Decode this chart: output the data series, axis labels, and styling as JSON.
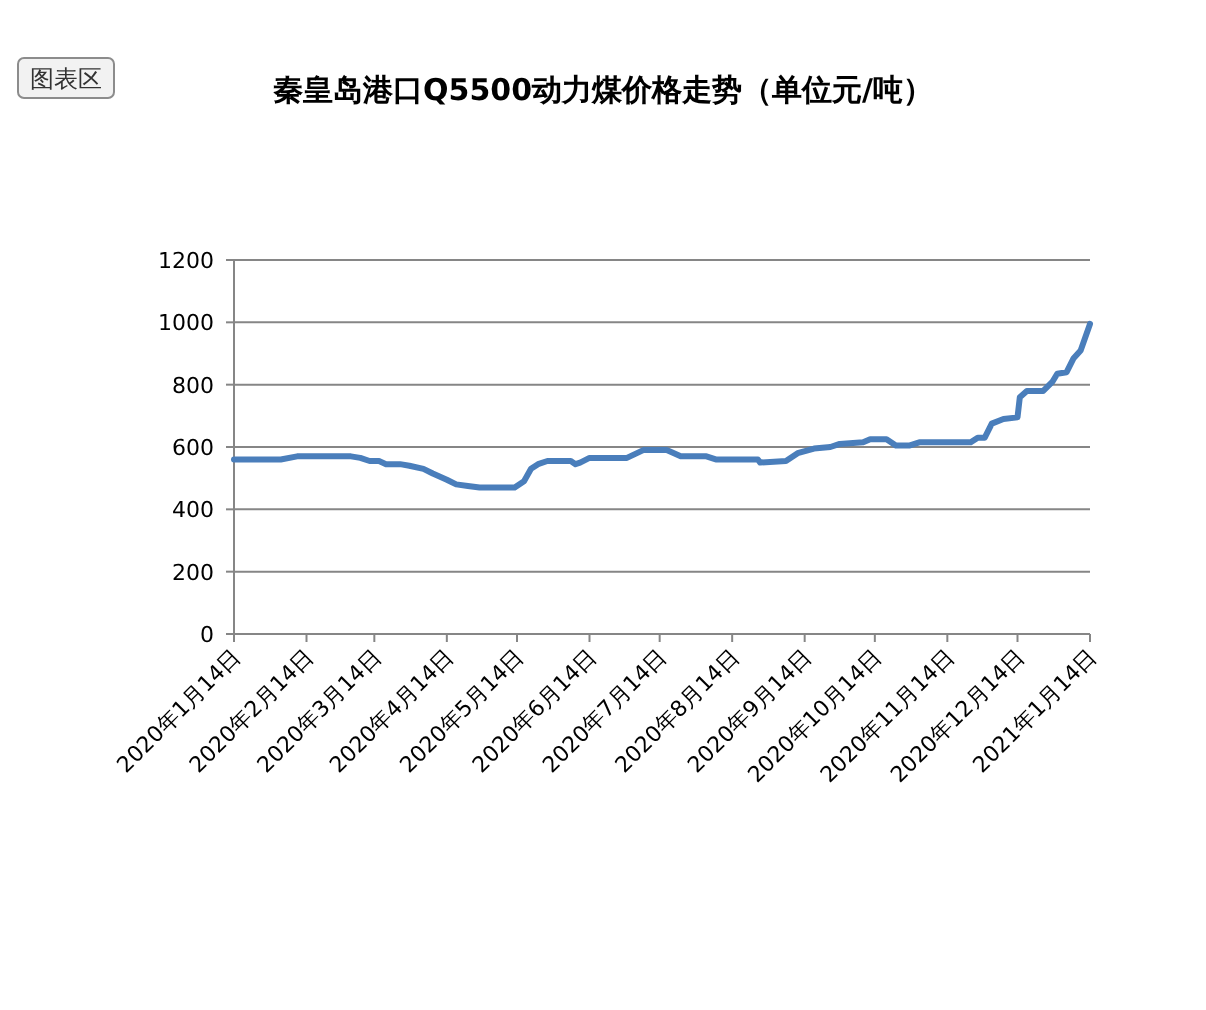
{
  "chart_data": {
    "type": "line",
    "title": "秦皇岛港口Q5500动力煤价格走势（单位元/吨）",
    "annotations": [
      "图表区"
    ],
    "x": [
      "2020-01-14",
      "2020-02-03",
      "2020-02-10",
      "2020-03-04",
      "2020-03-08",
      "2020-03-12",
      "2020-03-16",
      "2020-03-19",
      "2020-03-25",
      "2020-03-29",
      "2020-04-04",
      "2020-04-08",
      "2020-04-14",
      "2020-04-18",
      "2020-04-23",
      "2020-04-28",
      "2020-05-13",
      "2020-05-17",
      "2020-05-20",
      "2020-05-23",
      "2020-05-27",
      "2020-06-06",
      "2020-06-08",
      "2020-06-10",
      "2020-06-14",
      "2020-06-30",
      "2020-07-07",
      "2020-07-17",
      "2020-07-23",
      "2020-08-03",
      "2020-08-07",
      "2020-08-25",
      "2020-08-26",
      "2020-09-06",
      "2020-09-11",
      "2020-09-18",
      "2020-09-25",
      "2020-09-29",
      "2020-10-09",
      "2020-10-12",
      "2020-10-19",
      "2020-10-23",
      "2020-10-29",
      "2020-11-02",
      "2020-11-24",
      "2020-11-27",
      "2020-11-30",
      "2020-12-03",
      "2020-12-08",
      "2020-12-14",
      "2020-12-15",
      "2020-12-18",
      "2020-12-25",
      "2020-12-29",
      "2020-12-31",
      "2021-01-04",
      "2021-01-07",
      "2021-01-10",
      "2021-01-14"
    ],
    "series": [
      {
        "color": "#4a7ebb",
        "values": [
          560,
          560,
          570,
          570,
          565,
          555,
          555,
          545,
          545,
          540,
          530,
          515,
          495,
          480,
          475,
          470,
          470,
          490,
          530,
          545,
          555,
          555,
          545,
          550,
          565,
          565,
          590,
          590,
          570,
          570,
          560,
          560,
          550,
          555,
          580,
          595,
          600,
          610,
          615,
          625,
          625,
          605,
          605,
          615,
          615,
          630,
          630,
          675,
          690,
          695,
          760,
          780,
          780,
          810,
          835,
          840,
          885,
          910,
          995
        ]
      }
    ],
    "xlim": [
      "2020-01-14",
      "2021-01-14"
    ],
    "xticks": [
      {
        "value": "2020-01-14",
        "label": "2020年1月14日"
      },
      {
        "value": "2020-02-14",
        "label": "2020年2月14日"
      },
      {
        "value": "2020-03-14",
        "label": "2020年3月14日"
      },
      {
        "value": "2020-04-14",
        "label": "2020年4月14日"
      },
      {
        "value": "2020-05-14",
        "label": "2020年5月14日"
      },
      {
        "value": "2020-06-14",
        "label": "2020年6月14日"
      },
      {
        "value": "2020-07-14",
        "label": "2020年7月14日"
      },
      {
        "value": "2020-08-14",
        "label": "2020年8月14日"
      },
      {
        "value": "2020-09-14",
        "label": "2020年9月14日"
      },
      {
        "value": "2020-10-14",
        "label": "2020年10月14日"
      },
      {
        "value": "2020-11-14",
        "label": "2020年11月14日"
      },
      {
        "value": "2020-12-14",
        "label": "2020年12月14日"
      },
      {
        "value": "2021-01-14",
        "label": "2021年1月14日"
      }
    ],
    "ylim": [
      0,
      1200
    ],
    "yticks": [
      0,
      200,
      400,
      600,
      800,
      1000,
      1200
    ],
    "grid": "y",
    "line_style": "solid"
  }
}
